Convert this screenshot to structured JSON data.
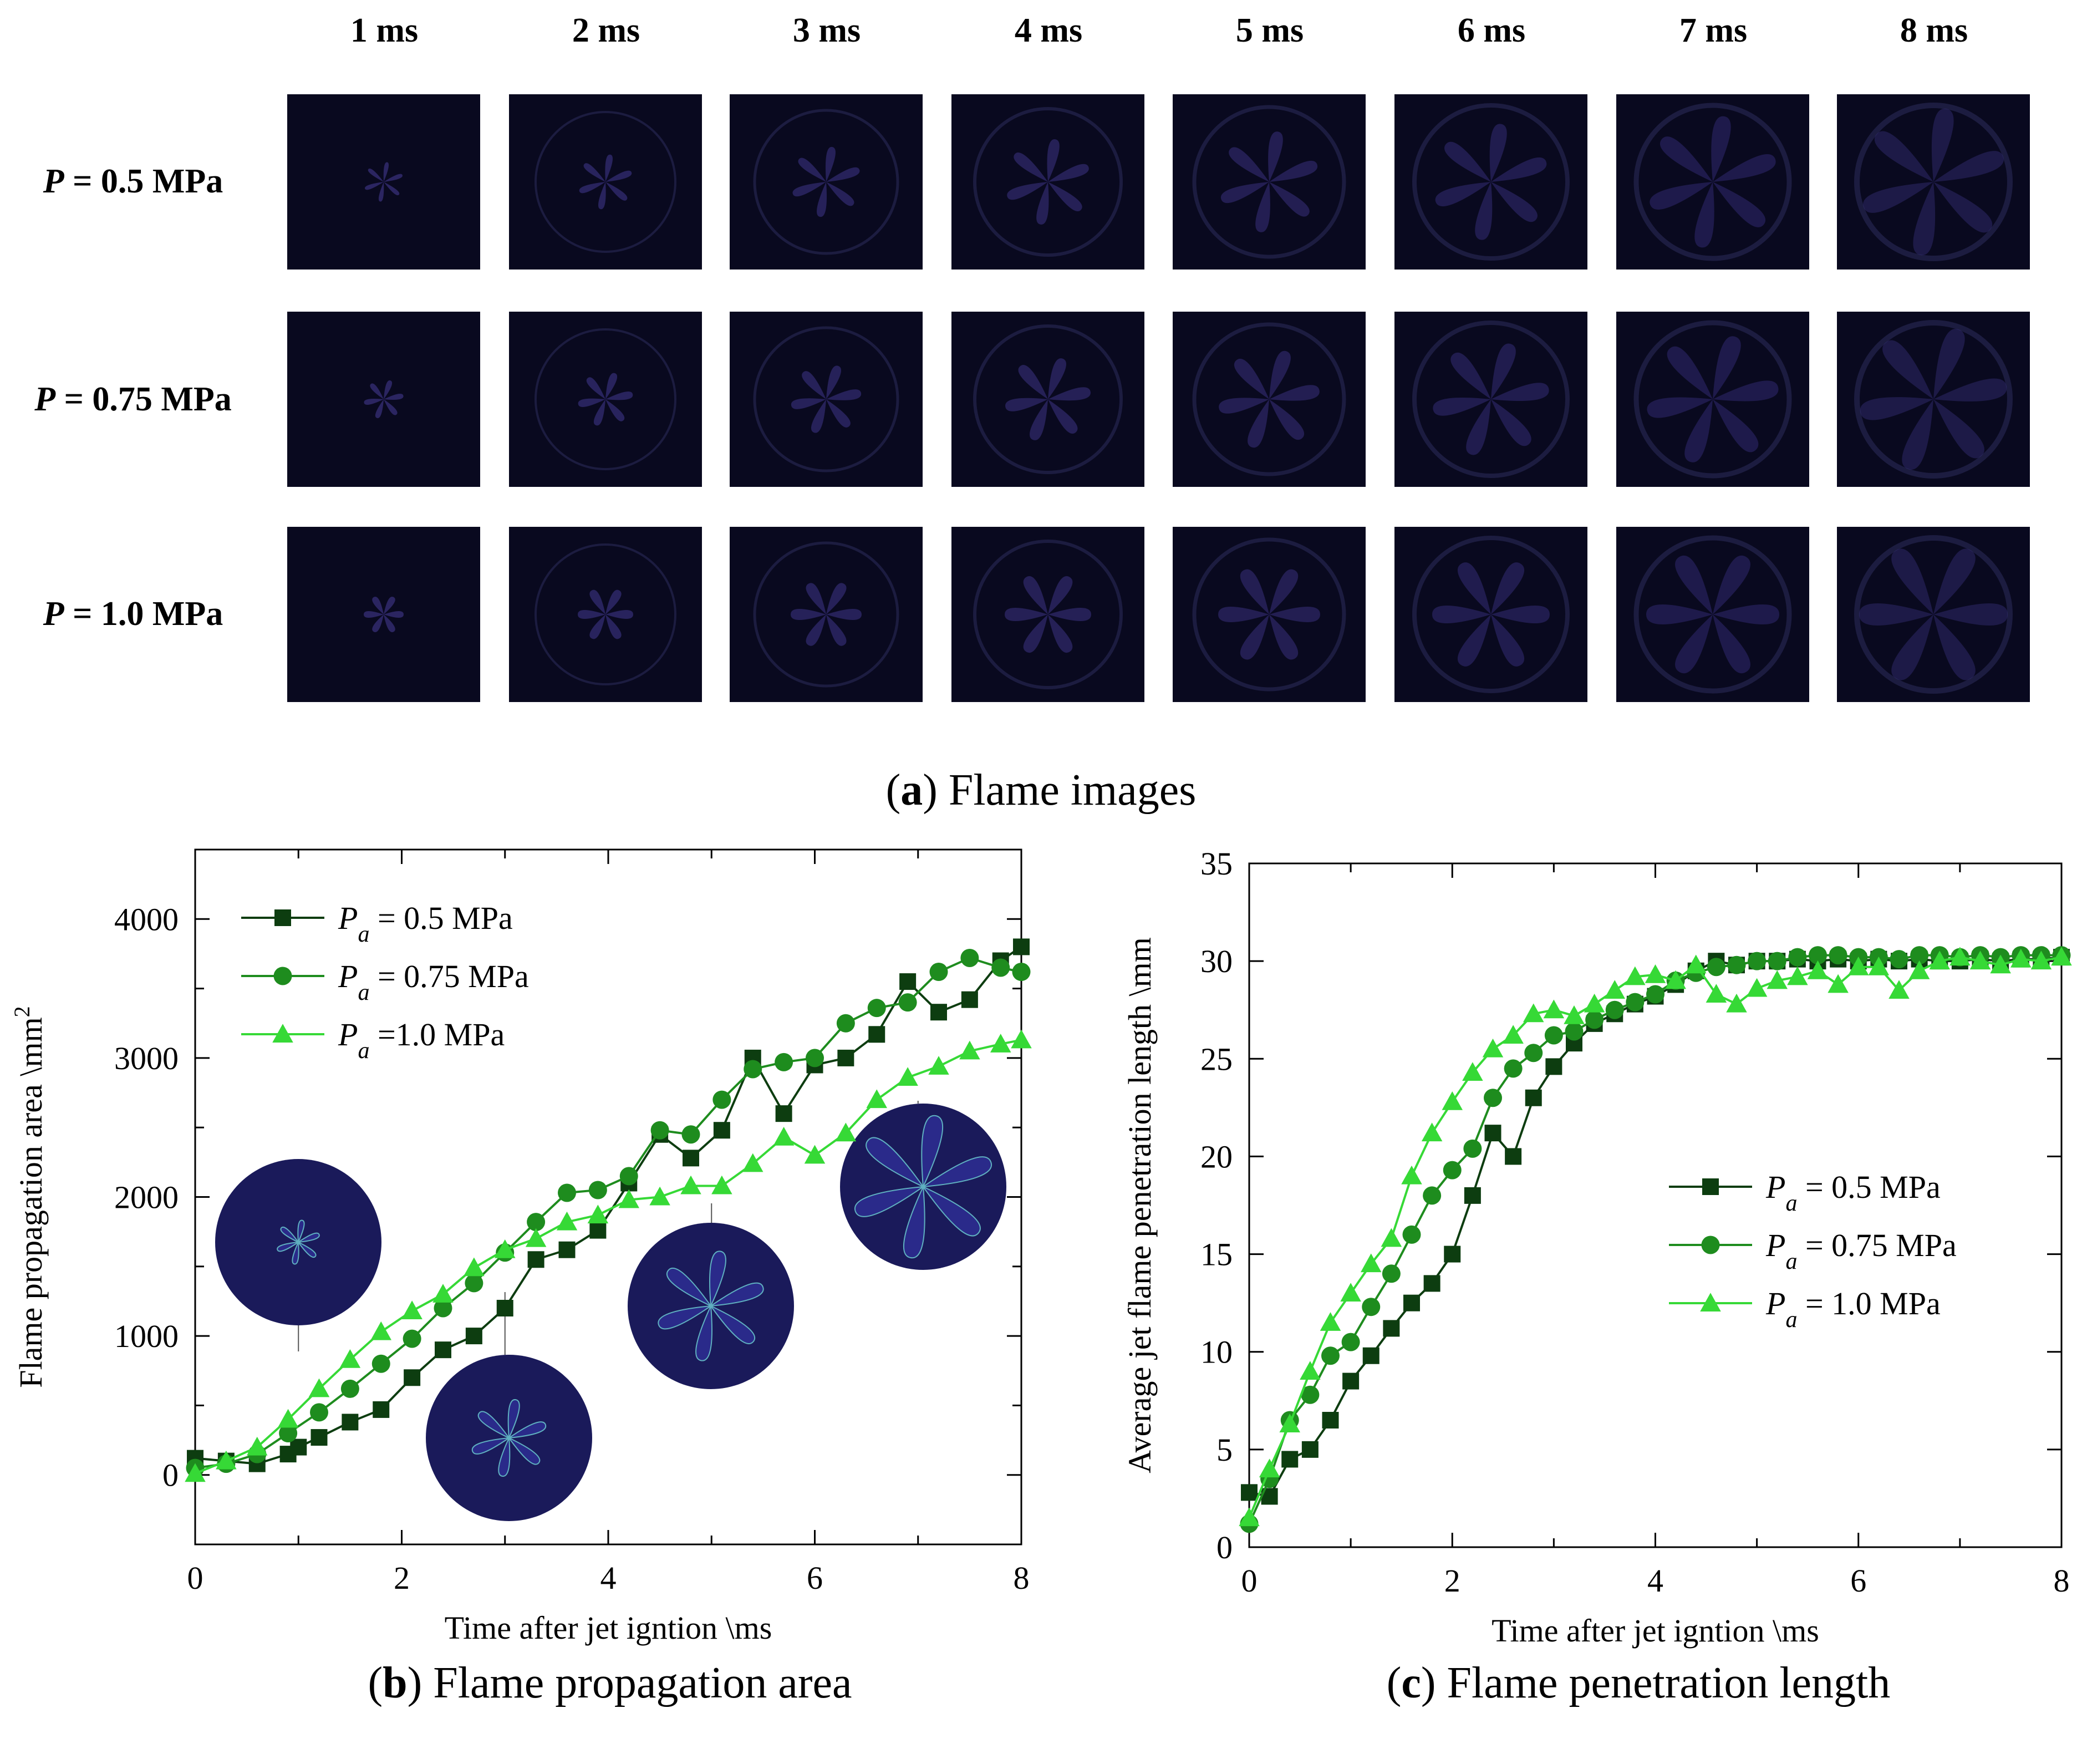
{
  "panel_a": {
    "columns": [
      "1 ms",
      "2 ms",
      "3 ms",
      "4 ms",
      "5 ms",
      "6 ms",
      "7 ms",
      "8 ms"
    ],
    "rows": [
      {
        "symbol": "P",
        "rest": " = 0.5 MPa"
      },
      {
        "symbol": "P",
        "rest": " = 0.75 MPa"
      },
      {
        "symbol": "P",
        "rest": " = 1.0 MPa"
      }
    ],
    "caption": {
      "letter": "a",
      "text": " Flame images"
    }
  },
  "caption_b": {
    "letter": "b",
    "text": " Flame propagation area"
  },
  "caption_c": {
    "letter": "c",
    "text": " Flame penetration length"
  },
  "colors": {
    "s05": "#0d3d10",
    "s075": "#1e8c1e",
    "s10": "#36d936",
    "frame": "#000000",
    "flame": "#4a3fa0",
    "inset": "#1a1a5a",
    "inset_edge": "#5fb0c0"
  },
  "chart_data": [
    {
      "type": "line",
      "title": "",
      "xlabel": "Time after jet igntion \\ms",
      "ylabel": "Flame propagation area \\mm",
      "ylabel_sup": "2",
      "xlim": [
        0,
        8
      ],
      "ylim": [
        -500,
        4500
      ],
      "xticks": [
        0,
        2,
        4,
        6,
        8
      ],
      "yticks": [
        0,
        1000,
        2000,
        3000,
        4000
      ],
      "legend": [
        {
          "prefix": "P",
          "sub": "a",
          "label": " = 0.5 MPa",
          "marker": "square"
        },
        {
          "prefix": "P",
          "sub": "a",
          "label": " = 0.75 MPa",
          "marker": "circle"
        },
        {
          "prefix": "P",
          "sub": "a",
          "label": " =1.0 MPa",
          "marker": "triangle"
        }
      ],
      "insets_at_time": [
        1,
        3,
        5,
        7
      ],
      "series": [
        {
          "name": "Pa = 0.5 MPa",
          "x": [
            0,
            0.3,
            0.6,
            0.9,
            1.0,
            1.2,
            1.5,
            1.8,
            2.1,
            2.4,
            2.7,
            3.0,
            3.3,
            3.6,
            3.9,
            4.2,
            4.5,
            4.8,
            5.1,
            5.4,
            5.7,
            6.0,
            6.3,
            6.6,
            6.9,
            7.2,
            7.5,
            7.8,
            8.0
          ],
          "y": [
            120,
            100,
            80,
            150,
            200,
            270,
            380,
            470,
            700,
            900,
            1000,
            1200,
            1550,
            1620,
            1760,
            2100,
            2450,
            2280,
            2480,
            3000,
            2600,
            2950,
            3000,
            3170,
            3550,
            3330,
            3420,
            3700,
            3800
          ]
        },
        {
          "name": "Pa = 0.75 MPa",
          "x": [
            0,
            0.3,
            0.6,
            0.9,
            1.2,
            1.5,
            1.8,
            2.1,
            2.4,
            2.7,
            3.0,
            3.3,
            3.6,
            3.9,
            4.2,
            4.5,
            4.8,
            5.1,
            5.4,
            5.7,
            6.0,
            6.3,
            6.6,
            6.9,
            7.2,
            7.5,
            7.8,
            8.0
          ],
          "y": [
            50,
            80,
            150,
            300,
            450,
            620,
            800,
            980,
            1200,
            1380,
            1600,
            1820,
            2030,
            2050,
            2150,
            2480,
            2450,
            2700,
            2920,
            2970,
            3000,
            3250,
            3360,
            3400,
            3620,
            3720,
            3650,
            3620
          ]
        },
        {
          "name": "Pa = 1.0 MPa",
          "x": [
            0,
            0.3,
            0.6,
            0.9,
            1.2,
            1.5,
            1.8,
            2.1,
            2.4,
            2.7,
            3.0,
            3.3,
            3.6,
            3.9,
            4.2,
            4.5,
            4.8,
            5.1,
            5.4,
            5.7,
            6.0,
            6.3,
            6.6,
            6.9,
            7.2,
            7.5,
            7.8,
            8.0
          ],
          "y": [
            10,
            100,
            200,
            400,
            620,
            830,
            1030,
            1180,
            1300,
            1490,
            1620,
            1700,
            1820,
            1870,
            1980,
            2000,
            2080,
            2080,
            2240,
            2430,
            2300,
            2460,
            2700,
            2860,
            2940,
            3050,
            3100,
            3130
          ]
        }
      ]
    },
    {
      "type": "line",
      "title": "",
      "xlabel": "Time after jet igntion \\ms",
      "ylabel": "Average jet flame penetration length \\mm",
      "xlim": [
        0,
        8
      ],
      "ylim": [
        0,
        35
      ],
      "xticks": [
        0,
        2,
        4,
        6,
        8
      ],
      "yticks": [
        0,
        5,
        10,
        15,
        20,
        25,
        30,
        35
      ],
      "legend": [
        {
          "prefix": "P",
          "sub": "a",
          "label": " = 0.5 MPa",
          "marker": "square"
        },
        {
          "prefix": "P",
          "sub": "a",
          "label": " = 0.75 MPa",
          "marker": "circle"
        },
        {
          "prefix": "P",
          "sub": "a",
          "label": " = 1.0 MPa",
          "marker": "triangle"
        }
      ],
      "series": [
        {
          "name": "Pa = 0.5 MPa",
          "x": [
            0,
            0.2,
            0.4,
            0.6,
            0.8,
            1.0,
            1.2,
            1.4,
            1.6,
            1.8,
            2.0,
            2.2,
            2.4,
            2.6,
            2.8,
            3.0,
            3.2,
            3.4,
            3.6,
            3.8,
            4.0,
            4.2,
            4.4,
            4.6,
            4.8,
            5.0,
            5.2,
            5.4,
            5.6,
            5.8,
            6.0,
            6.2,
            6.4,
            6.6,
            6.8,
            7.0,
            7.2,
            7.4,
            7.6,
            7.8,
            8.0
          ],
          "y": [
            2.8,
            2.6,
            4.5,
            5.0,
            6.5,
            8.5,
            9.8,
            11.2,
            12.5,
            13.5,
            15.0,
            18.0,
            21.2,
            20.0,
            23.0,
            24.6,
            25.8,
            26.8,
            27.3,
            27.8,
            28.2,
            28.8,
            29.5,
            30.0,
            29.8,
            30.0,
            30.0,
            30.1,
            30.0,
            30.1,
            30.0,
            30.1,
            30.0,
            30.1,
            30.0,
            30.0,
            30.1,
            30.0,
            30.1,
            30.1,
            30.2
          ]
        },
        {
          "name": "Pa = 0.75 MPa",
          "x": [
            0,
            0.2,
            0.4,
            0.6,
            0.8,
            1.0,
            1.2,
            1.4,
            1.6,
            1.8,
            2.0,
            2.2,
            2.4,
            2.6,
            2.8,
            3.0,
            3.2,
            3.4,
            3.6,
            3.8,
            4.0,
            4.2,
            4.4,
            4.6,
            4.8,
            5.0,
            5.2,
            5.4,
            5.6,
            5.8,
            6.0,
            6.2,
            6.4,
            6.6,
            6.8,
            7.0,
            7.2,
            7.4,
            7.6,
            7.8,
            8.0
          ],
          "y": [
            1.2,
            3.5,
            6.5,
            7.8,
            9.8,
            10.5,
            12.3,
            14.0,
            16.0,
            18.0,
            19.3,
            20.4,
            23.0,
            24.5,
            25.3,
            26.2,
            26.4,
            27.0,
            27.5,
            27.9,
            28.3,
            29.0,
            29.4,
            29.7,
            29.8,
            30.0,
            30.0,
            30.2,
            30.3,
            30.3,
            30.2,
            30.2,
            30.1,
            30.3,
            30.3,
            30.2,
            30.3,
            30.2,
            30.3,
            30.3,
            30.3
          ]
        },
        {
          "name": "Pa = 1.0 MPa",
          "x": [
            0,
            0.2,
            0.4,
            0.6,
            0.8,
            1.0,
            1.2,
            1.4,
            1.6,
            1.8,
            2.0,
            2.2,
            2.4,
            2.6,
            2.8,
            3.0,
            3.2,
            3.4,
            3.6,
            3.8,
            4.0,
            4.2,
            4.4,
            4.6,
            4.8,
            5.0,
            5.2,
            5.4,
            5.6,
            5.8,
            6.0,
            6.2,
            6.4,
            6.6,
            6.8,
            7.0,
            7.2,
            7.4,
            7.6,
            7.8,
            8.0
          ],
          "y": [
            1.5,
            4.0,
            6.3,
            9.0,
            11.5,
            13.0,
            14.5,
            15.8,
            19.0,
            21.2,
            22.8,
            24.3,
            25.5,
            26.2,
            27.3,
            27.5,
            27.2,
            27.8,
            28.5,
            29.2,
            29.3,
            29.0,
            29.8,
            28.3,
            27.8,
            28.6,
            29.0,
            29.2,
            29.5,
            28.8,
            29.7,
            29.7,
            28.5,
            29.5,
            30.0,
            30.2,
            30.0,
            29.8,
            30.1,
            30.0,
            30.2
          ]
        }
      ]
    }
  ]
}
